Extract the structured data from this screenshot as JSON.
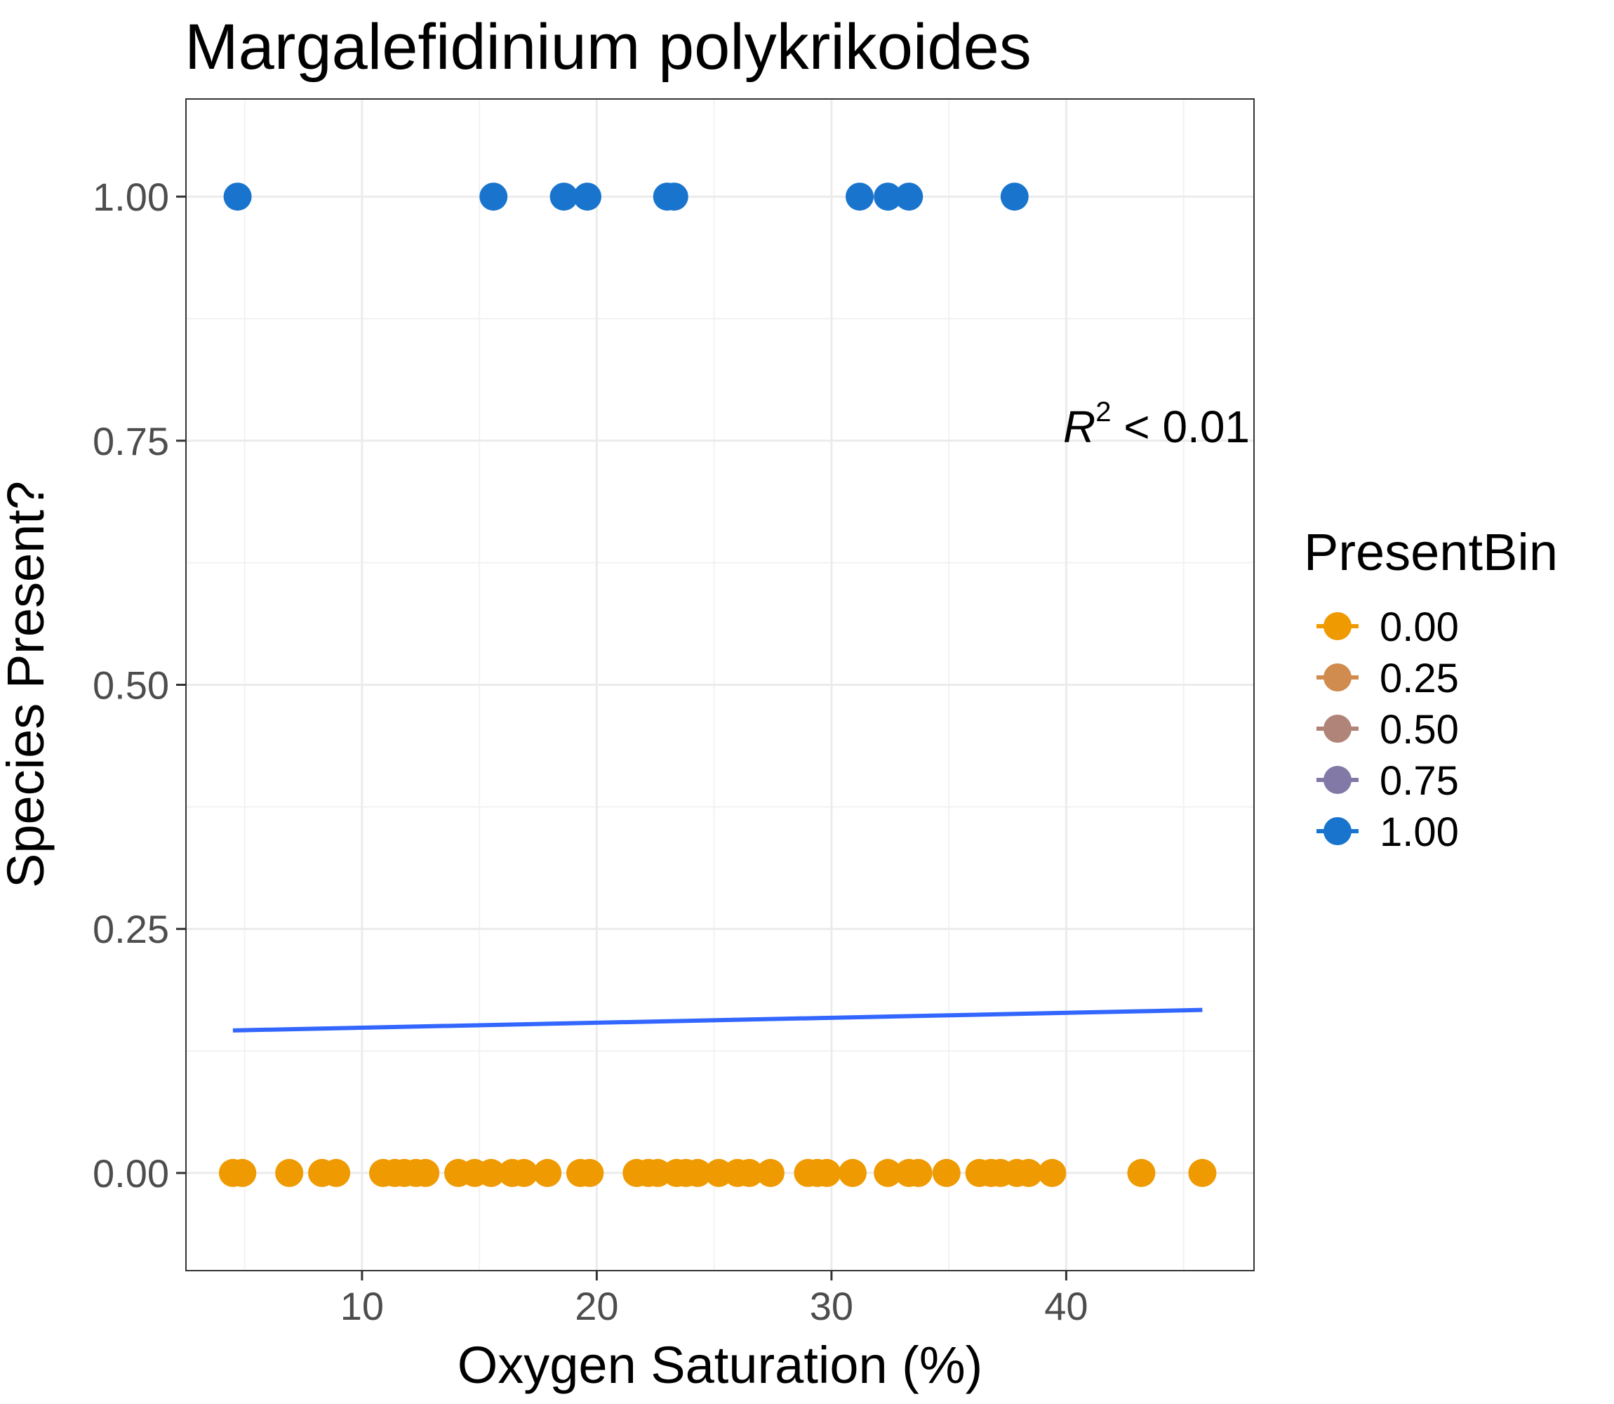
{
  "chart_data": {
    "type": "scatter",
    "title": "Margalefidinium polykrikoides",
    "xlabel": "Oxygen Saturation (%)",
    "ylabel": "Species Present?",
    "xlim": [
      2.5,
      48
    ],
    "ylim": [
      -0.1,
      1.1
    ],
    "x_ticks": [
      10,
      20,
      30,
      40
    ],
    "x_tick_labels": [
      "10",
      "20",
      "30",
      "40"
    ],
    "y_ticks": [
      0,
      0.25,
      0.5,
      0.75,
      1
    ],
    "y_tick_labels": [
      "0.00",
      "0.25",
      "0.50",
      "0.75",
      "1.00"
    ],
    "grid": true,
    "annotation": {
      "r_symbol": "R",
      "superscript": "2",
      "text": " < 0.01"
    },
    "legend": {
      "title": "PresentBin",
      "position": "right",
      "entries": [
        {
          "label": "0.00",
          "color": "#EE9A00"
        },
        {
          "label": "0.25",
          "color": "#D08B4E"
        },
        {
          "label": "0.50",
          "color": "#B08478"
        },
        {
          "label": "0.75",
          "color": "#8279A6"
        },
        {
          "label": "1.00",
          "color": "#1874CD"
        }
      ]
    },
    "series": [
      {
        "name": "1.00",
        "color": "#1874CD",
        "x": [
          4.7,
          15.6,
          18.6,
          19.6,
          23.0,
          23.3,
          31.2,
          32.4,
          33.3,
          37.8
        ],
        "y": [
          1,
          1,
          1,
          1,
          1,
          1,
          1,
          1,
          1,
          1
        ]
      },
      {
        "name": "0.00",
        "color": "#EE9A00",
        "x": [
          4.5,
          4.9,
          6.9,
          8.3,
          8.9,
          10.9,
          11.4,
          11.8,
          12.3,
          12.7,
          14.1,
          14.8,
          15.5,
          16.4,
          16.9,
          17.9,
          19.3,
          19.7,
          21.7,
          22.2,
          22.6,
          23.4,
          23.8,
          24.3,
          25.2,
          26.0,
          26.5,
          27.4,
          29.0,
          29.4,
          29.8,
          30.9,
          32.4,
          33.3,
          33.7,
          34.9,
          36.3,
          36.8,
          37.2,
          37.9,
          38.4,
          39.4,
          43.2,
          45.8
        ],
        "y": [
          0,
          0,
          0,
          0,
          0,
          0,
          0,
          0,
          0,
          0,
          0,
          0,
          0,
          0,
          0,
          0,
          0,
          0,
          0,
          0,
          0,
          0,
          0,
          0,
          0,
          0,
          0,
          0,
          0,
          0,
          0,
          0,
          0,
          0,
          0,
          0,
          0,
          0,
          0,
          0,
          0,
          0,
          0,
          0
        ]
      }
    ],
    "fit_line": {
      "color": "#3366FF",
      "x": [
        4.5,
        45.8
      ],
      "y": [
        0.146,
        0.167
      ]
    }
  }
}
